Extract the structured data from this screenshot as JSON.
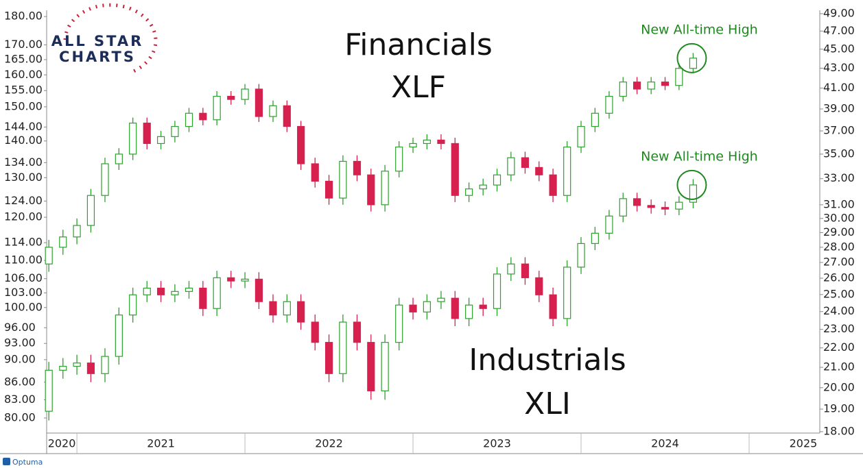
{
  "logo": {
    "line1": "ALL STAR",
    "line2": "CHARTS"
  },
  "footer": "Optuma",
  "chart_data": {
    "type": "candlestick",
    "x": [
      2020.833,
      2020.917,
      2021.0,
      2021.083,
      2021.167,
      2021.25,
      2021.333,
      2021.417,
      2021.5,
      2021.583,
      2021.667,
      2021.75,
      2021.833,
      2021.917,
      2022.0,
      2022.083,
      2022.167,
      2022.25,
      2022.333,
      2022.417,
      2022.5,
      2022.583,
      2022.667,
      2022.75,
      2022.833,
      2022.917,
      2023.0,
      2023.083,
      2023.167,
      2023.25,
      2023.333,
      2023.417,
      2023.5,
      2023.583,
      2023.667,
      2023.75,
      2023.833,
      2023.917,
      2024.0,
      2024.083,
      2024.167,
      2024.25,
      2024.333,
      2024.417,
      2024.5,
      2024.583,
      2024.667
    ],
    "xlim": [
      2020.82,
      2025.645
    ],
    "xticks": [
      {
        "value": 2020,
        "label": "2020"
      },
      {
        "value": 2021,
        "label": "2021"
      },
      {
        "value": 2022,
        "label": "2022"
      },
      {
        "value": 2023,
        "label": "2023"
      },
      {
        "value": 2024,
        "label": "2024"
      },
      {
        "value": 2025,
        "label": "2025"
      }
    ],
    "log_scale": true,
    "ylim": [
      77.6,
      182.3
    ],
    "yticks": [
      {
        "value": 80,
        "label": "80.00"
      },
      {
        "value": 83,
        "label": "83.00"
      },
      {
        "value": 86,
        "label": "86.00"
      },
      {
        "value": 90,
        "label": "90.00"
      },
      {
        "value": 93,
        "label": "93.00"
      },
      {
        "value": 96,
        "label": "96.00"
      },
      {
        "value": 100,
        "label": "100.00"
      },
      {
        "value": 103,
        "label": "103.00"
      },
      {
        "value": 106,
        "label": "106.00"
      },
      {
        "value": 110,
        "label": "110.00"
      },
      {
        "value": 114,
        "label": "114.00"
      },
      {
        "value": 120,
        "label": "120.00"
      },
      {
        "value": 124,
        "label": "124.00"
      },
      {
        "value": 130,
        "label": "130.00"
      },
      {
        "value": 134,
        "label": "134.00"
      },
      {
        "value": 140,
        "label": "140.00"
      },
      {
        "value": 144,
        "label": "144.00"
      },
      {
        "value": 150,
        "label": "150.00"
      },
      {
        "value": 155,
        "label": "155.00"
      },
      {
        "value": 160,
        "label": "160.00"
      },
      {
        "value": 165,
        "label": "165.00"
      },
      {
        "value": 170,
        "label": "170.00"
      },
      {
        "value": 180,
        "label": "180.00"
      }
    ],
    "y2lim": [
      17.94,
      49.4
    ],
    "y2ticks": [
      {
        "value": 18,
        "label": "18.00"
      },
      {
        "value": 19,
        "label": "19.00"
      },
      {
        "value": 20,
        "label": "20.00"
      },
      {
        "value": 21,
        "label": "21.00"
      },
      {
        "value": 22,
        "label": "22.00"
      },
      {
        "value": 23,
        "label": "23.00"
      },
      {
        "value": 24,
        "label": "24.00"
      },
      {
        "value": 25,
        "label": "25.00"
      },
      {
        "value": 26,
        "label": "26.00"
      },
      {
        "value": 27,
        "label": "27.00"
      },
      {
        "value": 28,
        "label": "28.00"
      },
      {
        "value": 29,
        "label": "29.00"
      },
      {
        "value": 30,
        "label": "30.00"
      },
      {
        "value": 31,
        "label": "31.00"
      },
      {
        "value": 33,
        "label": "33.00"
      },
      {
        "value": 35,
        "label": "35.00"
      },
      {
        "value": 37,
        "label": "37.00"
      },
      {
        "value": 39,
        "label": "39.00"
      },
      {
        "value": 41,
        "label": "41.00"
      },
      {
        "value": 43,
        "label": "43.00"
      },
      {
        "value": 45,
        "label": "45.00"
      },
      {
        "value": 47,
        "label": "47.00"
      },
      {
        "value": 49,
        "label": "49.00"
      }
    ],
    "up_color": "#2ca02c",
    "down_color": "#d6204e",
    "series": [
      {
        "name": "Financials",
        "ticker": "XLF",
        "axis": "y2",
        "annotation": "New All-time High",
        "open": [
          26.9,
          28.0,
          28.7,
          29.5,
          31.7,
          34.2,
          35.0,
          37.7,
          35.9,
          36.5,
          37.4,
          38.6,
          38.0,
          40.2,
          39.9,
          40.9,
          38.3,
          39.3,
          37.4,
          34.2,
          32.8,
          31.5,
          34.4,
          33.3,
          31.0,
          33.6,
          35.6,
          35.9,
          36.2,
          35.9,
          31.7,
          32.2,
          32.5,
          33.3,
          34.7,
          33.9,
          33.3,
          31.7,
          35.6,
          37.4,
          38.6,
          40.2,
          41.6,
          40.9,
          41.6,
          41.26,
          42.98
        ],
        "high": [
          28.5,
          29.2,
          30.0,
          32.2,
          34.7,
          35.5,
          38.2,
          38.2,
          37.0,
          37.9,
          39.1,
          39.1,
          40.7,
          40.7,
          41.4,
          41.4,
          39.8,
          39.8,
          37.9,
          34.7,
          33.3,
          34.9,
          34.9,
          33.8,
          34.1,
          36.1,
          36.4,
          36.7,
          36.7,
          36.4,
          32.7,
          33.0,
          33.8,
          35.2,
          35.2,
          34.4,
          33.8,
          36.1,
          37.9,
          39.1,
          40.7,
          42.1,
          42.1,
          42.1,
          42.1,
          43.5,
          44.6
        ],
        "low": [
          26.4,
          27.5,
          28.2,
          29.0,
          31.2,
          33.7,
          34.5,
          35.4,
          35.4,
          36.0,
          36.9,
          37.5,
          37.5,
          39.4,
          39.4,
          37.8,
          37.8,
          36.9,
          33.7,
          32.3,
          31.0,
          31.0,
          32.8,
          30.5,
          30.5,
          33.1,
          35.1,
          35.4,
          35.4,
          31.2,
          31.2,
          31.7,
          32.0,
          32.8,
          33.4,
          32.8,
          31.2,
          31.2,
          35.1,
          36.9,
          38.1,
          39.7,
          40.4,
          40.4,
          40.8,
          40.8,
          42.5
        ],
        "close": [
          28.0,
          28.7,
          29.5,
          31.7,
          34.2,
          35.0,
          37.7,
          35.9,
          36.5,
          37.4,
          38.6,
          38.0,
          40.2,
          39.9,
          40.9,
          38.3,
          39.3,
          37.4,
          34.2,
          32.8,
          31.5,
          34.4,
          33.3,
          31.0,
          33.6,
          35.6,
          35.9,
          36.2,
          35.9,
          31.7,
          32.2,
          32.5,
          33.3,
          34.7,
          33.9,
          33.3,
          31.7,
          35.6,
          37.4,
          38.6,
          40.2,
          41.6,
          40.9,
          41.6,
          41.26,
          42.98,
          44.05
        ]
      },
      {
        "name": "Industrials",
        "ticker": "XLI",
        "axis": "y",
        "annotation": "New All-time High",
        "open": [
          81.1,
          88.1,
          88.8,
          89.4,
          87.5,
          90.6,
          98.5,
          102.6,
          104.0,
          102.6,
          103.3,
          104.0,
          99.8,
          106.2,
          105.5,
          105.9,
          101.2,
          98.5,
          101.2,
          97.1,
          93.2,
          87.5,
          97.1,
          93.2,
          84.5,
          93.2,
          100.5,
          99.1,
          101.2,
          101.9,
          97.8,
          100.5,
          99.8,
          107.0,
          109.2,
          106.2,
          102.6,
          97.8,
          108.5,
          113.8,
          116.2,
          120.3,
          124.6,
          122.9,
          122.4,
          122.0,
          123.7
        ],
        "high": [
          89.6,
          90.3,
          90.9,
          90.9,
          92.1,
          100.0,
          104.1,
          105.5,
          105.5,
          104.8,
          105.5,
          105.5,
          107.7,
          107.7,
          107.4,
          107.4,
          102.7,
          102.7,
          102.7,
          98.6,
          94.7,
          98.6,
          98.6,
          94.7,
          94.7,
          102.0,
          102.0,
          102.7,
          103.4,
          103.4,
          102.0,
          102.0,
          108.5,
          110.7,
          110.7,
          107.7,
          104.1,
          110.0,
          115.3,
          117.7,
          121.8,
          126.1,
          126.1,
          124.4,
          123.9,
          125.2,
          129.6
        ],
        "low": [
          79.6,
          86.6,
          87.3,
          86.0,
          86.0,
          89.1,
          97.0,
          101.1,
          101.1,
          101.1,
          101.8,
          98.3,
          98.3,
          104.0,
          104.0,
          99.7,
          97.0,
          97.0,
          95.6,
          91.7,
          86.0,
          86.0,
          91.7,
          83.0,
          83.0,
          91.7,
          97.6,
          97.6,
          99.7,
          96.3,
          96.3,
          98.3,
          98.3,
          105.5,
          104.7,
          101.1,
          96.3,
          96.3,
          107.0,
          112.3,
          114.7,
          118.8,
          121.4,
          120.9,
          120.5,
          120.5,
          122.2
        ],
        "close": [
          88.1,
          88.8,
          89.4,
          87.5,
          90.6,
          98.5,
          102.6,
          104.0,
          102.6,
          103.3,
          104.0,
          99.8,
          106.2,
          105.5,
          105.9,
          101.2,
          98.5,
          101.2,
          97.1,
          93.2,
          87.5,
          97.1,
          93.2,
          84.5,
          93.2,
          100.5,
          99.1,
          101.2,
          101.9,
          97.8,
          100.5,
          99.8,
          107.0,
          109.2,
          106.2,
          102.6,
          97.8,
          108.5,
          113.8,
          116.2,
          120.3,
          124.6,
          122.9,
          122.4,
          122.0,
          123.7,
          128.1
        ]
      }
    ]
  }
}
